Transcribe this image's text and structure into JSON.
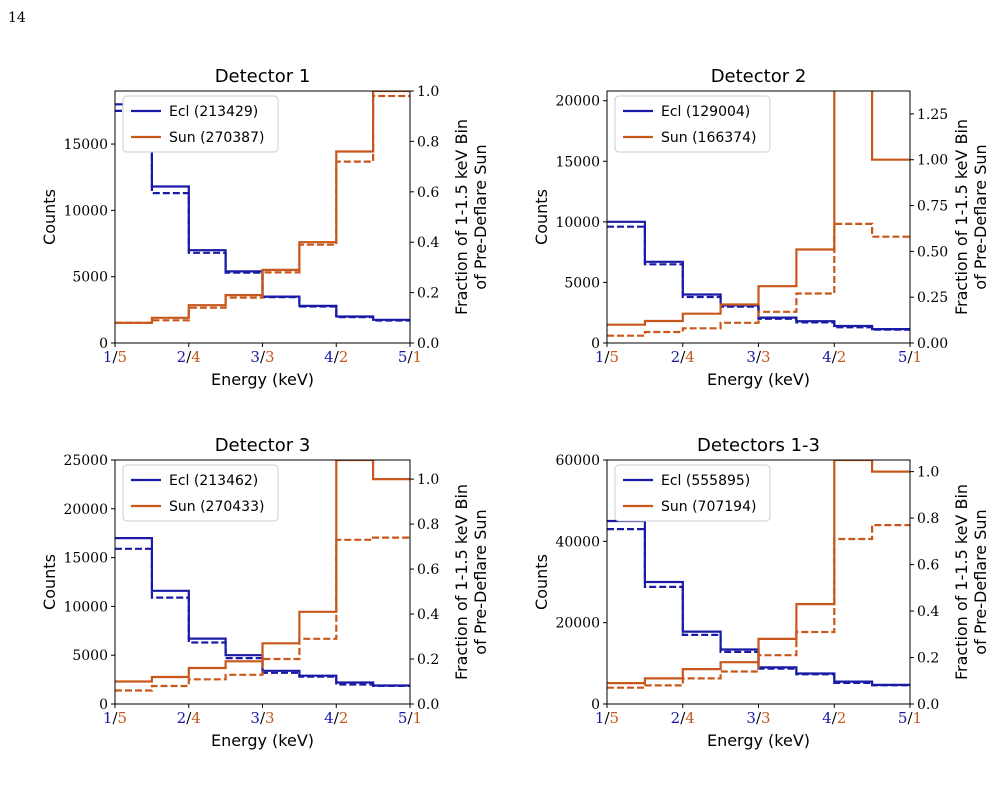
{
  "page_number": "14",
  "colors": {
    "ecl": "#1a1aa6",
    "sun": "#c8571b"
  },
  "chart_data": [
    {
      "type": "step",
      "title": "Detector 1",
      "xlabel": "Energy (keV)",
      "ylabel_left": "Counts",
      "ylabel_right": [
        "Fraction of 1-1.5 keV Bin",
        "of Pre-Deflare Sun"
      ],
      "x_ticks": [
        {
          "ecl": "1",
          "sun": "5"
        },
        {
          "ecl": "2",
          "sun": "4"
        },
        {
          "ecl": "3",
          "sun": "3"
        },
        {
          "ecl": "4",
          "sun": "2"
        },
        {
          "ecl": "5",
          "sun": "1"
        }
      ],
      "ylim_left": [
        0,
        19000
      ],
      "yticks_left": [
        "0",
        "5000",
        "10000",
        "15000"
      ],
      "ylim_right": [
        0,
        1.0
      ],
      "yticks_right": [
        "0.0",
        "0.2",
        "0.4",
        "0.6",
        "0.8",
        "1.0"
      ],
      "legend": [
        "Ecl (213429)",
        "Sun (270387)"
      ],
      "series": [
        {
          "name": "Ecl (213429)",
          "style": "solid",
          "color": "ecl",
          "values": [
            18000,
            11800,
            7000,
            5400,
            3500,
            2800,
            2000,
            1750
          ]
        },
        {
          "name": "Ecl (213429)",
          "style": "dashed",
          "color": "ecl",
          "values": [
            17500,
            11300,
            6800,
            5300,
            3450,
            2750,
            1950,
            1700
          ]
        },
        {
          "name": "Sun (270387)",
          "style": "solid",
          "color": "sun",
          "axis": "right",
          "values": [
            0.08,
            0.1,
            0.15,
            0.19,
            0.29,
            0.4,
            0.76,
            1.0
          ]
        },
        {
          "name": "Sun (270387)",
          "style": "dashed",
          "color": "sun",
          "axis": "right",
          "values": [
            0.08,
            0.09,
            0.14,
            0.18,
            0.28,
            0.39,
            0.72,
            0.98
          ]
        }
      ]
    },
    {
      "type": "step",
      "title": "Detector 2",
      "xlabel": "Energy (keV)",
      "ylabel_left": "Counts",
      "ylabel_right": [
        "Fraction of 1-1.5 keV Bin",
        "of Pre-Deflare Sun"
      ],
      "x_ticks": [
        {
          "ecl": "1",
          "sun": "5"
        },
        {
          "ecl": "2",
          "sun": "4"
        },
        {
          "ecl": "3",
          "sun": "3"
        },
        {
          "ecl": "4",
          "sun": "2"
        },
        {
          "ecl": "5",
          "sun": "1"
        }
      ],
      "ylim_left": [
        0,
        20800
      ],
      "yticks_left": [
        "0",
        "5000",
        "10000",
        "15000",
        "20000"
      ],
      "ylim_right": [
        0,
        1.375
      ],
      "yticks_right": [
        "0.00",
        "0.25",
        "0.50",
        "0.75",
        "1.00",
        "1.25"
      ],
      "legend": [
        "Ecl (129004)",
        "Sun (166374)"
      ],
      "series": [
        {
          "name": "Ecl (129004)",
          "style": "solid",
          "color": "ecl",
          "values": [
            10000,
            6700,
            4000,
            3100,
            2100,
            1800,
            1400,
            1150
          ]
        },
        {
          "name": "Ecl (129004)",
          "style": "dashed",
          "color": "ecl",
          "values": [
            9600,
            6500,
            3800,
            3000,
            2000,
            1700,
            1300,
            1100
          ]
        },
        {
          "name": "Sun (166374)",
          "style": "solid",
          "color": "sun",
          "axis": "right",
          "values": [
            0.1,
            0.12,
            0.16,
            0.21,
            0.31,
            0.51,
            1.38,
            1.0
          ]
        },
        {
          "name": "Sun (166374)",
          "style": "dashed",
          "color": "sun",
          "axis": "right",
          "values": [
            0.04,
            0.06,
            0.08,
            0.11,
            0.17,
            0.27,
            0.65,
            0.58
          ]
        }
      ]
    },
    {
      "type": "step",
      "title": "Detector 3",
      "xlabel": "Energy (keV)",
      "ylabel_left": "Counts",
      "ylabel_right": [
        "Fraction of 1-1.5 keV Bin",
        "of Pre-Deflare Sun"
      ],
      "x_ticks": [
        {
          "ecl": "1",
          "sun": "5"
        },
        {
          "ecl": "2",
          "sun": "4"
        },
        {
          "ecl": "3",
          "sun": "3"
        },
        {
          "ecl": "4",
          "sun": "2"
        },
        {
          "ecl": "5",
          "sun": "1"
        }
      ],
      "ylim_left": [
        0,
        25000
      ],
      "yticks_left": [
        "0",
        "5000",
        "10000",
        "15000",
        "20000",
        "25000"
      ],
      "ylim_right": [
        0,
        1.085
      ],
      "yticks_right": [
        "0.0",
        "0.2",
        "0.4",
        "0.6",
        "0.8",
        "1.0"
      ],
      "legend": [
        "Ecl (213462)",
        "Sun (270433)"
      ],
      "series": [
        {
          "name": "Ecl (213462)",
          "style": "solid",
          "color": "ecl",
          "values": [
            17000,
            11600,
            6700,
            5000,
            3400,
            2900,
            2200,
            1900
          ]
        },
        {
          "name": "Ecl (213462)",
          "style": "dashed",
          "color": "ecl",
          "values": [
            15900,
            10900,
            6300,
            4700,
            3200,
            2800,
            2000,
            1850
          ]
        },
        {
          "name": "Sun (270433)",
          "style": "solid",
          "color": "sun",
          "axis": "right",
          "values": [
            0.1,
            0.12,
            0.16,
            0.19,
            0.27,
            0.41,
            1.085,
            1.0
          ]
        },
        {
          "name": "Sun (270433)",
          "style": "dashed",
          "color": "sun",
          "axis": "right",
          "values": [
            0.06,
            0.08,
            0.11,
            0.13,
            0.2,
            0.29,
            0.73,
            0.74
          ]
        }
      ]
    },
    {
      "type": "step",
      "title": "Detectors 1-3",
      "xlabel": "Energy (keV)",
      "ylabel_left": "Counts",
      "ylabel_right": [
        "Fraction of 1-1.5 keV Bin",
        "of Pre-Deflare Sun"
      ],
      "x_ticks": [
        {
          "ecl": "1",
          "sun": "5"
        },
        {
          "ecl": "2",
          "sun": "4"
        },
        {
          "ecl": "3",
          "sun": "3"
        },
        {
          "ecl": "4",
          "sun": "2"
        },
        {
          "ecl": "5",
          "sun": "1"
        }
      ],
      "ylim_left": [
        0,
        60000
      ],
      "yticks_left": [
        "0",
        "20000",
        "40000",
        "60000"
      ],
      "ylim_right": [
        0,
        1.05
      ],
      "yticks_right": [
        "0.0",
        "0.2",
        "0.4",
        "0.6",
        "0.8",
        "1.0"
      ],
      "legend": [
        "Ecl (555895)",
        "Sun (707194)"
      ],
      "series": [
        {
          "name": "Ecl (555895)",
          "style": "solid",
          "color": "ecl",
          "values": [
            45000,
            30000,
            17800,
            13400,
            9000,
            7500,
            5500,
            4700
          ]
        },
        {
          "name": "Ecl (555895)",
          "style": "dashed",
          "color": "ecl",
          "values": [
            43000,
            28800,
            17000,
            12800,
            8700,
            7300,
            5200,
            4600
          ]
        },
        {
          "name": "Sun (707194)",
          "style": "solid",
          "color": "sun",
          "axis": "right",
          "values": [
            0.09,
            0.11,
            0.15,
            0.18,
            0.28,
            0.43,
            1.05,
            1.0
          ]
        },
        {
          "name": "Sun (707194)",
          "style": "dashed",
          "color": "sun",
          "axis": "right",
          "values": [
            0.07,
            0.08,
            0.11,
            0.14,
            0.21,
            0.31,
            0.71,
            0.77
          ]
        }
      ]
    }
  ]
}
